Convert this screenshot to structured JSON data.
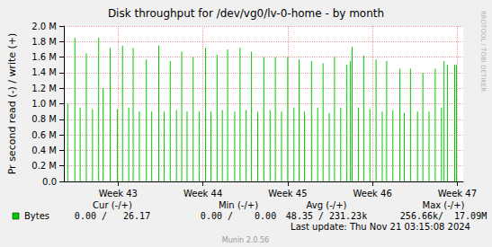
{
  "chart_data": {
    "type": "bar",
    "title": "Disk throughput for /dev/vg0/lv-0-home - by month",
    "y_label": "Pr second read (-) / write (+)",
    "x": [
      42.406,
      42.49,
      42.552,
      42.625,
      42.698,
      42.771,
      42.823,
      42.906,
      42.99,
      43.052,
      43.125,
      43.177,
      43.25,
      43.333,
      43.396,
      43.479,
      43.542,
      43.615,
      43.688,
      43.75,
      43.813,
      43.885,
      43.958,
      44.031,
      44.094,
      44.167,
      44.229,
      44.292,
      44.375,
      44.438,
      44.51,
      44.573,
      44.646,
      44.719,
      44.792,
      44.854,
      44.927,
      45.0,
      45.073,
      45.135,
      45.198,
      45.281,
      45.354,
      45.417,
      45.49,
      45.552,
      45.625,
      45.698,
      45.74,
      45.76,
      45.833,
      45.896,
      45.969,
      46.042,
      46.115,
      46.167,
      46.24,
      46.323,
      46.375,
      46.448,
      46.531,
      46.594,
      46.667,
      46.74,
      46.813,
      46.844,
      46.885,
      46.969,
      46.99
    ],
    "series": [
      {
        "name": "Bytes",
        "color": "#00cc00",
        "values": [
          1000000,
          1850000,
          950000,
          1650000,
          930000,
          1850000,
          1200000,
          1720000,
          930000,
          1750000,
          950000,
          1720000,
          900000,
          1570000,
          900000,
          1750000,
          900000,
          1550000,
          920000,
          1670000,
          900000,
          1600000,
          900000,
          1720000,
          900000,
          1630000,
          920000,
          1700000,
          900000,
          1720000,
          920000,
          1670000,
          900000,
          1600000,
          920000,
          1600000,
          900000,
          1600000,
          950000,
          1570000,
          900000,
          1550000,
          950000,
          1520000,
          880000,
          1600000,
          950000,
          1500000,
          1550000,
          1730000,
          950000,
          1620000,
          930000,
          1570000,
          900000,
          1550000,
          920000,
          1450000,
          880000,
          1450000,
          900000,
          1400000,
          900000,
          1450000,
          950000,
          1550000,
          1500000,
          1500000,
          1500000
        ]
      }
    ],
    "xlim": [
      42.36,
      47.07
    ],
    "xticks": [
      {
        "value": 43,
        "label": "Week 43"
      },
      {
        "value": 44,
        "label": "Week 44"
      },
      {
        "value": 45,
        "label": "Week 45"
      },
      {
        "value": 46,
        "label": "Week 46"
      },
      {
        "value": 47,
        "label": "Week 47"
      }
    ],
    "ylim": [
      0,
      2000000
    ],
    "yticks": [
      {
        "value": 0,
        "label": "0.0"
      },
      {
        "value": 200000,
        "label": "0.2 M"
      },
      {
        "value": 400000,
        "label": "0.4 M"
      },
      {
        "value": 600000,
        "label": "0.6 M"
      },
      {
        "value": 800000,
        "label": "0.8 M"
      },
      {
        "value": 1000000,
        "label": "1.0 M"
      },
      {
        "value": 1200000,
        "label": "1.2 M"
      },
      {
        "value": 1400000,
        "label": "1.4 M"
      },
      {
        "value": 1600000,
        "label": "1.6 M"
      },
      {
        "value": 1800000,
        "label": "1.8 M"
      },
      {
        "value": 2000000,
        "label": "2.0 M"
      }
    ],
    "grid": true,
    "legend_table": {
      "headers": [
        "Cur (-/+)",
        "Min (-/+)",
        "Avg (-/+)",
        "Max (-/+)"
      ],
      "rows": [
        [
          "0.00 /   26.17",
          "0.00 /    0.00",
          "48.35 / 231.23k",
          "256.66k/  17.09M"
        ]
      ]
    },
    "annotations": [
      "RRDTOOL / TOBI OETIKER",
      "Last update: Thu Nov 21 03:15:08 2024",
      "Munin 2.0.56"
    ]
  }
}
